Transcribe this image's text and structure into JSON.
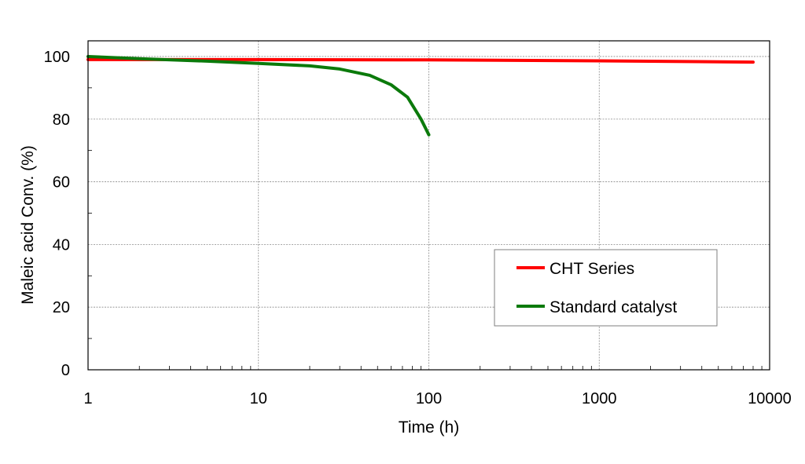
{
  "chart_data": {
    "type": "line",
    "title": "",
    "xlabel": "Time (h)",
    "ylabel": "Maleic acid Conv. (%)",
    "x_scale": "log",
    "xlim": [
      1,
      10000
    ],
    "ylim": [
      0,
      105
    ],
    "x_ticks": [
      1,
      10,
      100,
      1000,
      10000
    ],
    "x_tick_labels": [
      "1",
      "10",
      "100",
      "1000",
      "10000"
    ],
    "y_ticks": [
      0,
      20,
      40,
      60,
      80,
      100
    ],
    "y_tick_labels": [
      "0",
      "20",
      "40",
      "60",
      "80",
      "100"
    ],
    "grid": true,
    "legend": {
      "placement": "bottom-right"
    },
    "series": [
      {
        "name": "CHT Series",
        "color": "#ff0000",
        "points": [
          [
            1,
            99.0
          ],
          [
            10,
            99.0
          ],
          [
            100,
            98.9
          ],
          [
            1000,
            98.6
          ],
          [
            8000,
            98.2
          ]
        ]
      },
      {
        "name": "Standard catalyst",
        "color": "#0b7a0b",
        "points": [
          [
            1,
            100.0
          ],
          [
            2,
            99.3
          ],
          [
            5,
            98.5
          ],
          [
            10,
            97.8
          ],
          [
            20,
            97.0
          ],
          [
            30,
            96.0
          ],
          [
            45,
            94.0
          ],
          [
            60,
            91.0
          ],
          [
            75,
            87.0
          ],
          [
            90,
            80.0
          ],
          [
            100,
            75.0
          ]
        ]
      }
    ]
  }
}
